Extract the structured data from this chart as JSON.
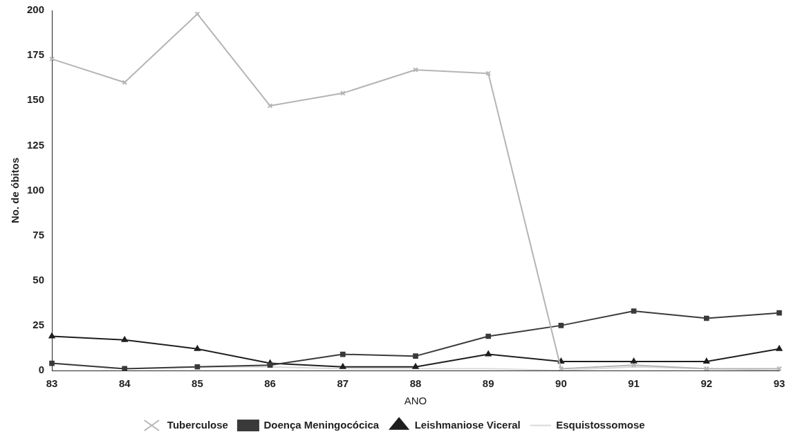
{
  "chart_data": {
    "type": "line",
    "xlabel": "ANO",
    "ylabel": "No. de óbitos",
    "categories": [
      "83",
      "84",
      "85",
      "86",
      "87",
      "88",
      "89",
      "90",
      "91",
      "92",
      "93"
    ],
    "series": [
      {
        "name": "Tuberculose",
        "color": "#b4b4b4",
        "marker": "cross",
        "values": [
          173,
          160,
          198,
          147,
          154,
          167,
          165,
          1,
          3,
          1,
          1
        ]
      },
      {
        "name": "Doença Meningocócica",
        "color": "#3a3a3a",
        "marker": "square",
        "values": [
          4,
          1,
          2,
          3,
          9,
          8,
          19,
          25,
          33,
          29,
          32
        ]
      },
      {
        "name": "Leishmaniose Viceral",
        "color": "#1e1e1e",
        "marker": "triangle",
        "values": [
          19,
          17,
          12,
          4,
          2,
          2,
          9,
          5,
          5,
          5,
          12
        ]
      },
      {
        "name": "Esquistossomose",
        "color": "#d8d8d8",
        "marker": "none",
        "values": [
          4,
          1,
          2,
          2,
          1,
          1,
          1,
          0,
          2,
          1,
          0
        ]
      }
    ],
    "ylim": [
      0,
      200
    ],
    "yticks": [
      0,
      25,
      50,
      75,
      100,
      125,
      150,
      175,
      200
    ],
    "grid": false,
    "legend": "bottom",
    "line_style": "solid"
  }
}
